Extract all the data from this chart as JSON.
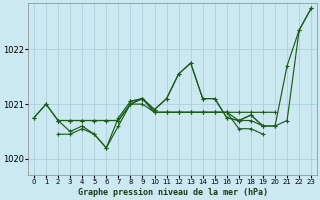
{
  "title": "Graphe pression niveau de la mer (hPa)",
  "background_color": "#cce8f0",
  "grid_color": "#aad0dc",
  "line_color": "#1e5c1e",
  "ylim": [
    1019.7,
    1022.85
  ],
  "yticks": [
    1020,
    1021,
    1022
  ],
  "x_labels": [
    "0",
    "1",
    "2",
    "3",
    "4",
    "5",
    "6",
    "7",
    "8",
    "9",
    "10",
    "11",
    "12",
    "13",
    "14",
    "15",
    "16",
    "17",
    "18",
    "19",
    "20",
    "21",
    "22",
    "23"
  ],
  "lines": [
    {
      "x": [
        0,
        1,
        2,
        3,
        4,
        5,
        6,
        7,
        8,
        9,
        10,
        11,
        12,
        13,
        14,
        15,
        16,
        17,
        18,
        19,
        20,
        21,
        22,
        23
      ],
      "y": [
        1020.75,
        1021.0,
        1020.7,
        1020.5,
        1020.6,
        1020.45,
        1020.2,
        1020.75,
        1021.05,
        1021.1,
        1020.9,
        1021.1,
        1021.55,
        1021.75,
        1021.1,
        1021.1,
        1020.75,
        1020.7,
        1020.8,
        1020.6,
        1020.6,
        1021.7,
        1022.35,
        1022.75
      ]
    },
    {
      "x": [
        0,
        1,
        2,
        3,
        4,
        5,
        6,
        7,
        8,
        9,
        10,
        11,
        12,
        13,
        14,
        15,
        16,
        17,
        18,
        19,
        20
      ],
      "y": [
        1020.75,
        1021.0,
        1020.7,
        1020.7,
        1020.7,
        1020.7,
        1020.7,
        1020.7,
        1021.0,
        1021.0,
        1020.85,
        1020.85,
        1020.85,
        1020.85,
        1020.85,
        1020.85,
        1020.85,
        1020.85,
        1020.85,
        1020.85,
        1020.85
      ]
    },
    {
      "x": [
        2,
        3,
        4,
        5,
        6,
        7,
        8,
        9,
        10,
        11,
        12,
        13,
        14,
        15,
        16,
        17,
        18,
        19
      ],
      "y": [
        1020.7,
        1020.7,
        1020.7,
        1020.7,
        1020.7,
        1020.7,
        1021.0,
        1021.1,
        1020.85,
        1020.85,
        1020.85,
        1020.85,
        1020.85,
        1020.85,
        1020.85,
        1020.7,
        1020.7,
        1020.6
      ]
    },
    {
      "x": [
        2,
        3,
        4,
        5,
        6,
        7,
        8,
        9,
        10,
        11,
        12,
        13,
        14,
        15,
        16,
        17,
        18,
        19
      ],
      "y": [
        1020.45,
        1020.45,
        1020.55,
        1020.45,
        1020.2,
        1020.6,
        1021.0,
        1021.1,
        1020.85,
        1020.85,
        1020.85,
        1020.85,
        1020.85,
        1020.85,
        1020.85,
        1020.55,
        1020.55,
        1020.45
      ]
    },
    {
      "x": [
        8,
        9,
        10,
        11,
        12,
        13,
        14,
        15,
        16,
        17,
        18,
        19,
        20,
        21,
        22,
        23
      ],
      "y": [
        1021.05,
        1021.1,
        1020.9,
        1021.1,
        1021.55,
        1021.75,
        1021.1,
        1021.1,
        1020.75,
        1020.7,
        1020.8,
        1020.6,
        1020.6,
        1020.7,
        1022.35,
        1022.75
      ]
    }
  ]
}
